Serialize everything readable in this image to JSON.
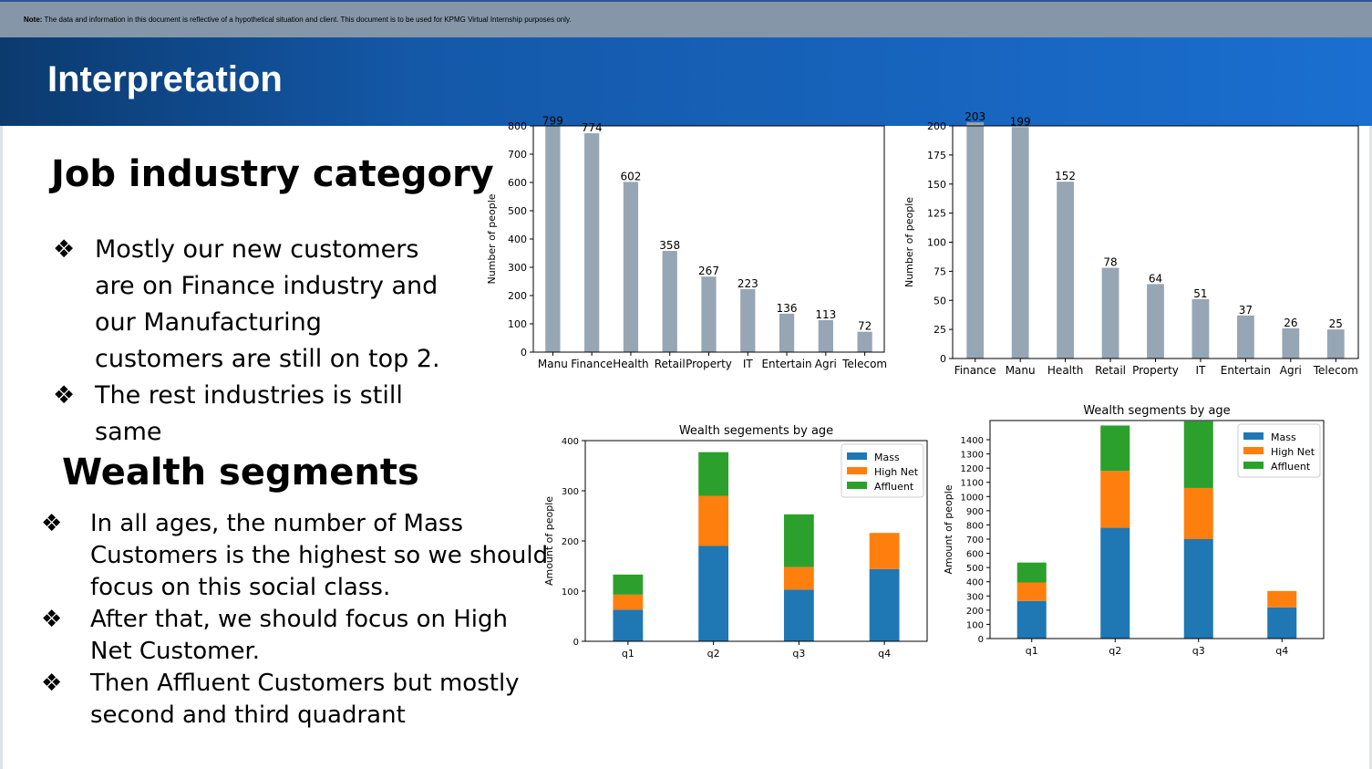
{
  "note": {
    "label": "Note:",
    "text": "The data and information in this document is reflective of a hypothetical situation and client. This document is to be used for KPMG Virtual Internship purposes only."
  },
  "slide_title": "Interpretation",
  "job_section": {
    "heading": "Job industry category",
    "bullets": [
      "Mostly our new customers are on Finance industry and our Manufacturing customers are still on top 2.",
      "The rest industries is still same"
    ]
  },
  "wealth_section": {
    "heading": "Wealth segments",
    "bullets": [
      "In all ages, the number of Mass Customers is the highest so we should focus on this social class.",
      "After that, we should focus on High Net Customer.",
      "Then Affluent Customers but mostly second and third quadrant"
    ]
  },
  "bullet_glyph": "❖",
  "colors": {
    "bar_gray": "#97a6b4",
    "mass": "#1f77b4",
    "high_net": "#ff7f0e",
    "affluent": "#2ca02c",
    "title_gradient_start": "#0b3a6e",
    "title_gradient_end": "#1a6fd0",
    "note_bar": "#8496a8"
  },
  "chart_data": [
    {
      "type": "bar",
      "categories": [
        "Manu",
        "Finance",
        "Health",
        "Retail",
        "Property",
        "IT",
        "Entertain",
        "Agri",
        "Telecom"
      ],
      "values": [
        799,
        774,
        602,
        358,
        267,
        223,
        136,
        113,
        72
      ],
      "title": "",
      "xlabel": "",
      "ylabel": "Number of people",
      "ylim": [
        0,
        800
      ],
      "yticks": [
        0,
        100,
        200,
        300,
        400,
        500,
        600,
        700,
        800
      ],
      "data_labels": true,
      "grid": false
    },
    {
      "type": "bar",
      "categories": [
        "Finance",
        "Manu",
        "Health",
        "Retail",
        "Property",
        "IT",
        "Entertain",
        "Agri",
        "Telecom"
      ],
      "values": [
        203,
        199,
        152,
        78,
        64,
        51,
        37,
        26,
        25
      ],
      "title": "",
      "xlabel": "",
      "ylabel": "Number of people",
      "ylim": [
        0,
        200
      ],
      "yticks": [
        0,
        25,
        50,
        75,
        100,
        125,
        150,
        175,
        200
      ],
      "data_labels": true,
      "grid": false
    },
    {
      "type": "bar",
      "stacked": true,
      "title": "Wealth segements by age",
      "xlabel": "",
      "ylabel": "Amount of people",
      "categories": [
        "q1",
        "q2",
        "q3",
        "q4"
      ],
      "series": [
        {
          "name": "Mass",
          "values": [
            63,
            190,
            103,
            144
          ]
        },
        {
          "name": "High Net",
          "values": [
            30,
            100,
            45,
            72
          ]
        },
        {
          "name": "Affluent",
          "values": [
            40,
            87,
            105,
            0
          ]
        }
      ],
      "ylim": [
        0,
        400
      ],
      "yticks": [
        0,
        100,
        200,
        300,
        400
      ],
      "legend": "top-right",
      "grid": false
    },
    {
      "type": "bar",
      "stacked": true,
      "title": "Wealth segments by age",
      "xlabel": "",
      "ylabel": "Amount of people",
      "categories": [
        "q1",
        "q2",
        "q3",
        "q4"
      ],
      "series": [
        {
          "name": "Mass",
          "values": [
            265,
            780,
            700,
            220
          ]
        },
        {
          "name": "High Net",
          "values": [
            130,
            400,
            360,
            115
          ]
        },
        {
          "name": "Affluent",
          "values": [
            140,
            320,
            470,
            0
          ]
        }
      ],
      "ylim": [
        0,
        1535
      ],
      "yticks": [
        0,
        100,
        200,
        300,
        400,
        500,
        600,
        700,
        800,
        900,
        1000,
        1100,
        1200,
        1300,
        1400
      ],
      "legend": "top-right",
      "grid": false
    }
  ]
}
